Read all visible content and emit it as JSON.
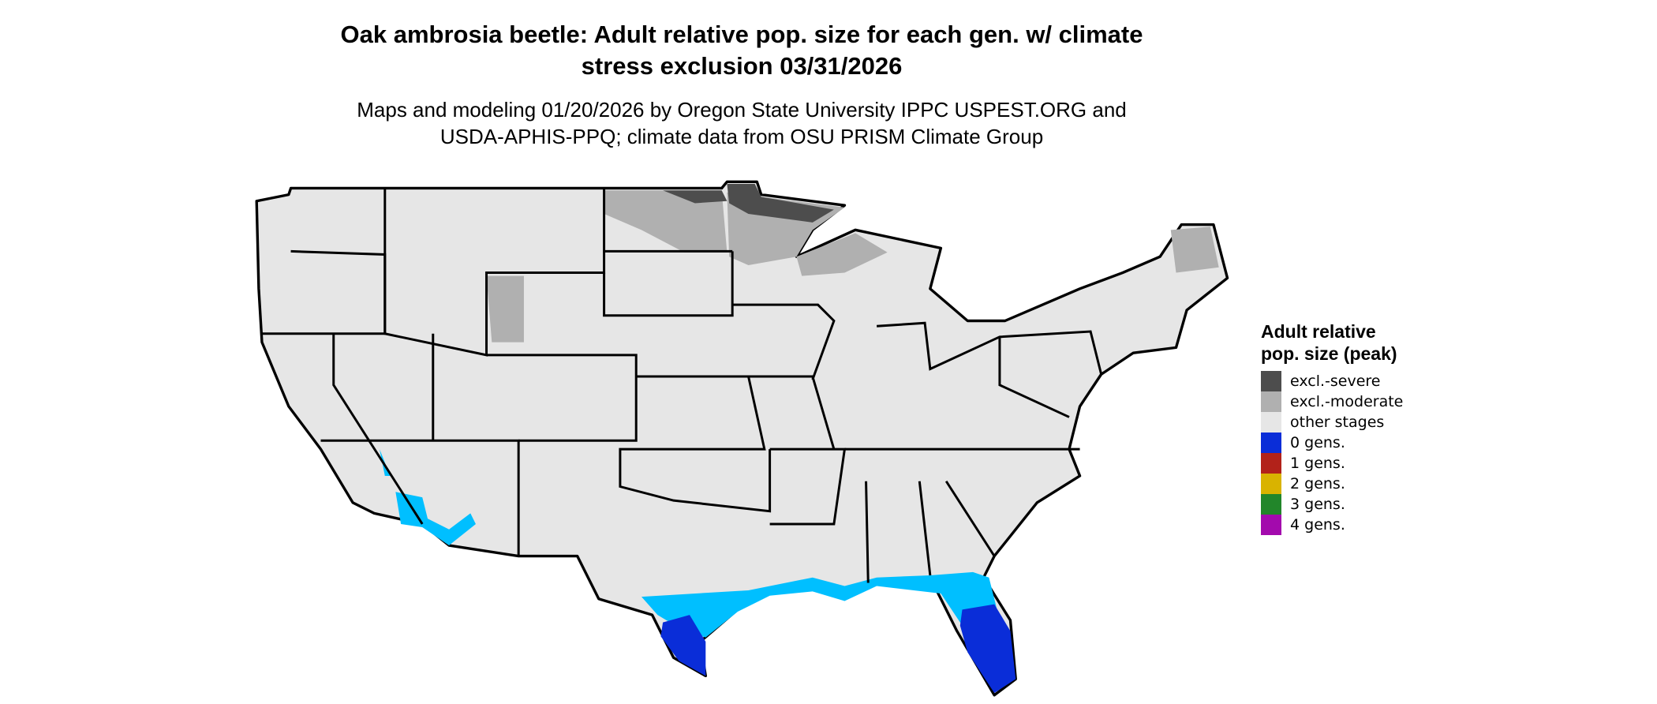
{
  "title": "Oak ambrosia beetle: Adult relative pop. size for each gen. w/ climate stress exclusion 03/31/2026",
  "subtitle": "Maps and modeling 01/20/2026 by Oregon State University IPPC USPEST.ORG and USDA-APHIS-PPQ; climate data from OSU PRISM Climate Group",
  "legend": {
    "title": "Adult relative pop. size (peak)",
    "items": [
      {
        "label": "excl.-severe",
        "color": "#4d4d4d"
      },
      {
        "label": "excl.-moderate",
        "color": "#b0b0b0"
      },
      {
        "label": "other stages",
        "color": "#e6e6e6"
      },
      {
        "label": "0 gens.",
        "color": "#0a2dd8"
      },
      {
        "label": "1 gens.",
        "color": "#b2221a"
      },
      {
        "label": "2 gens.",
        "color": "#d9b300"
      },
      {
        "label": "3 gens.",
        "color": "#22862a"
      },
      {
        "label": "4 gens.",
        "color": "#a30aad"
      }
    ]
  }
}
